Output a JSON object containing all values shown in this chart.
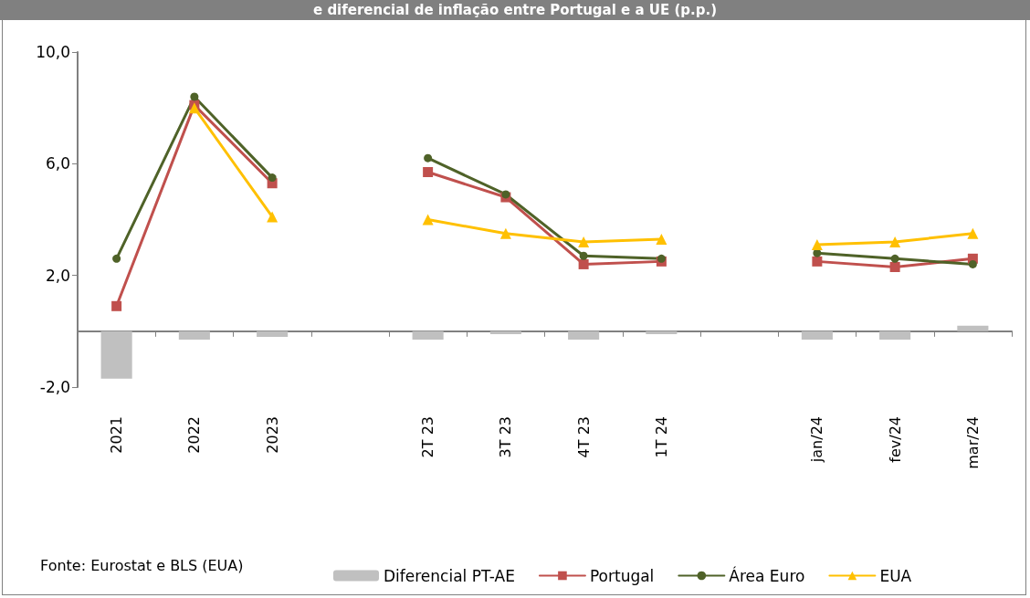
{
  "chart_data": {
    "type": "line",
    "title": "e diferencial de inflação entre Portugal e a UE (p.p.)",
    "categories": [
      "2021",
      "2022",
      "2023",
      null,
      "2T 23",
      "3T 23",
      "4T 23",
      "1T 24",
      null,
      "jan/24",
      "fev/24",
      "mar/24"
    ],
    "series": [
      {
        "name": "Diferencial PT-AE",
        "type": "bar",
        "color": "#c0c0c0",
        "values": [
          -1.7,
          -0.3,
          -0.2,
          null,
          -0.3,
          -0.1,
          -0.3,
          -0.1,
          null,
          -0.3,
          -0.3,
          0.2
        ]
      },
      {
        "name": "Portugal",
        "marker": "square",
        "color": "#c0504d",
        "values": [
          0.9,
          8.1,
          5.3,
          null,
          5.7,
          4.8,
          2.4,
          2.5,
          null,
          2.5,
          2.3,
          2.6
        ]
      },
      {
        "name": "Área Euro",
        "marker": "circle",
        "color": "#4f6228",
        "values": [
          2.6,
          8.4,
          5.5,
          null,
          6.2,
          4.9,
          2.7,
          2.6,
          null,
          2.8,
          2.6,
          2.4
        ]
      },
      {
        "name": "EUA",
        "marker": "triangle",
        "color": "#ffc000",
        "values": [
          null,
          8.0,
          4.1,
          null,
          4.0,
          3.5,
          3.2,
          3.3,
          null,
          3.1,
          3.2,
          3.5
        ]
      }
    ],
    "ylim": [
      -2,
      10
    ],
    "yticks": [
      {
        "value": -2,
        "label": "-2,0"
      },
      {
        "value": 2,
        "label": "2,0"
      },
      {
        "value": 6,
        "label": "6,0"
      },
      {
        "value": 10,
        "label": "10,0"
      }
    ],
    "grid": false,
    "legend": "bottom",
    "line_style": "solid",
    "annotations": [
      "Fonte: Eurostat e BLS (EUA)"
    ]
  }
}
